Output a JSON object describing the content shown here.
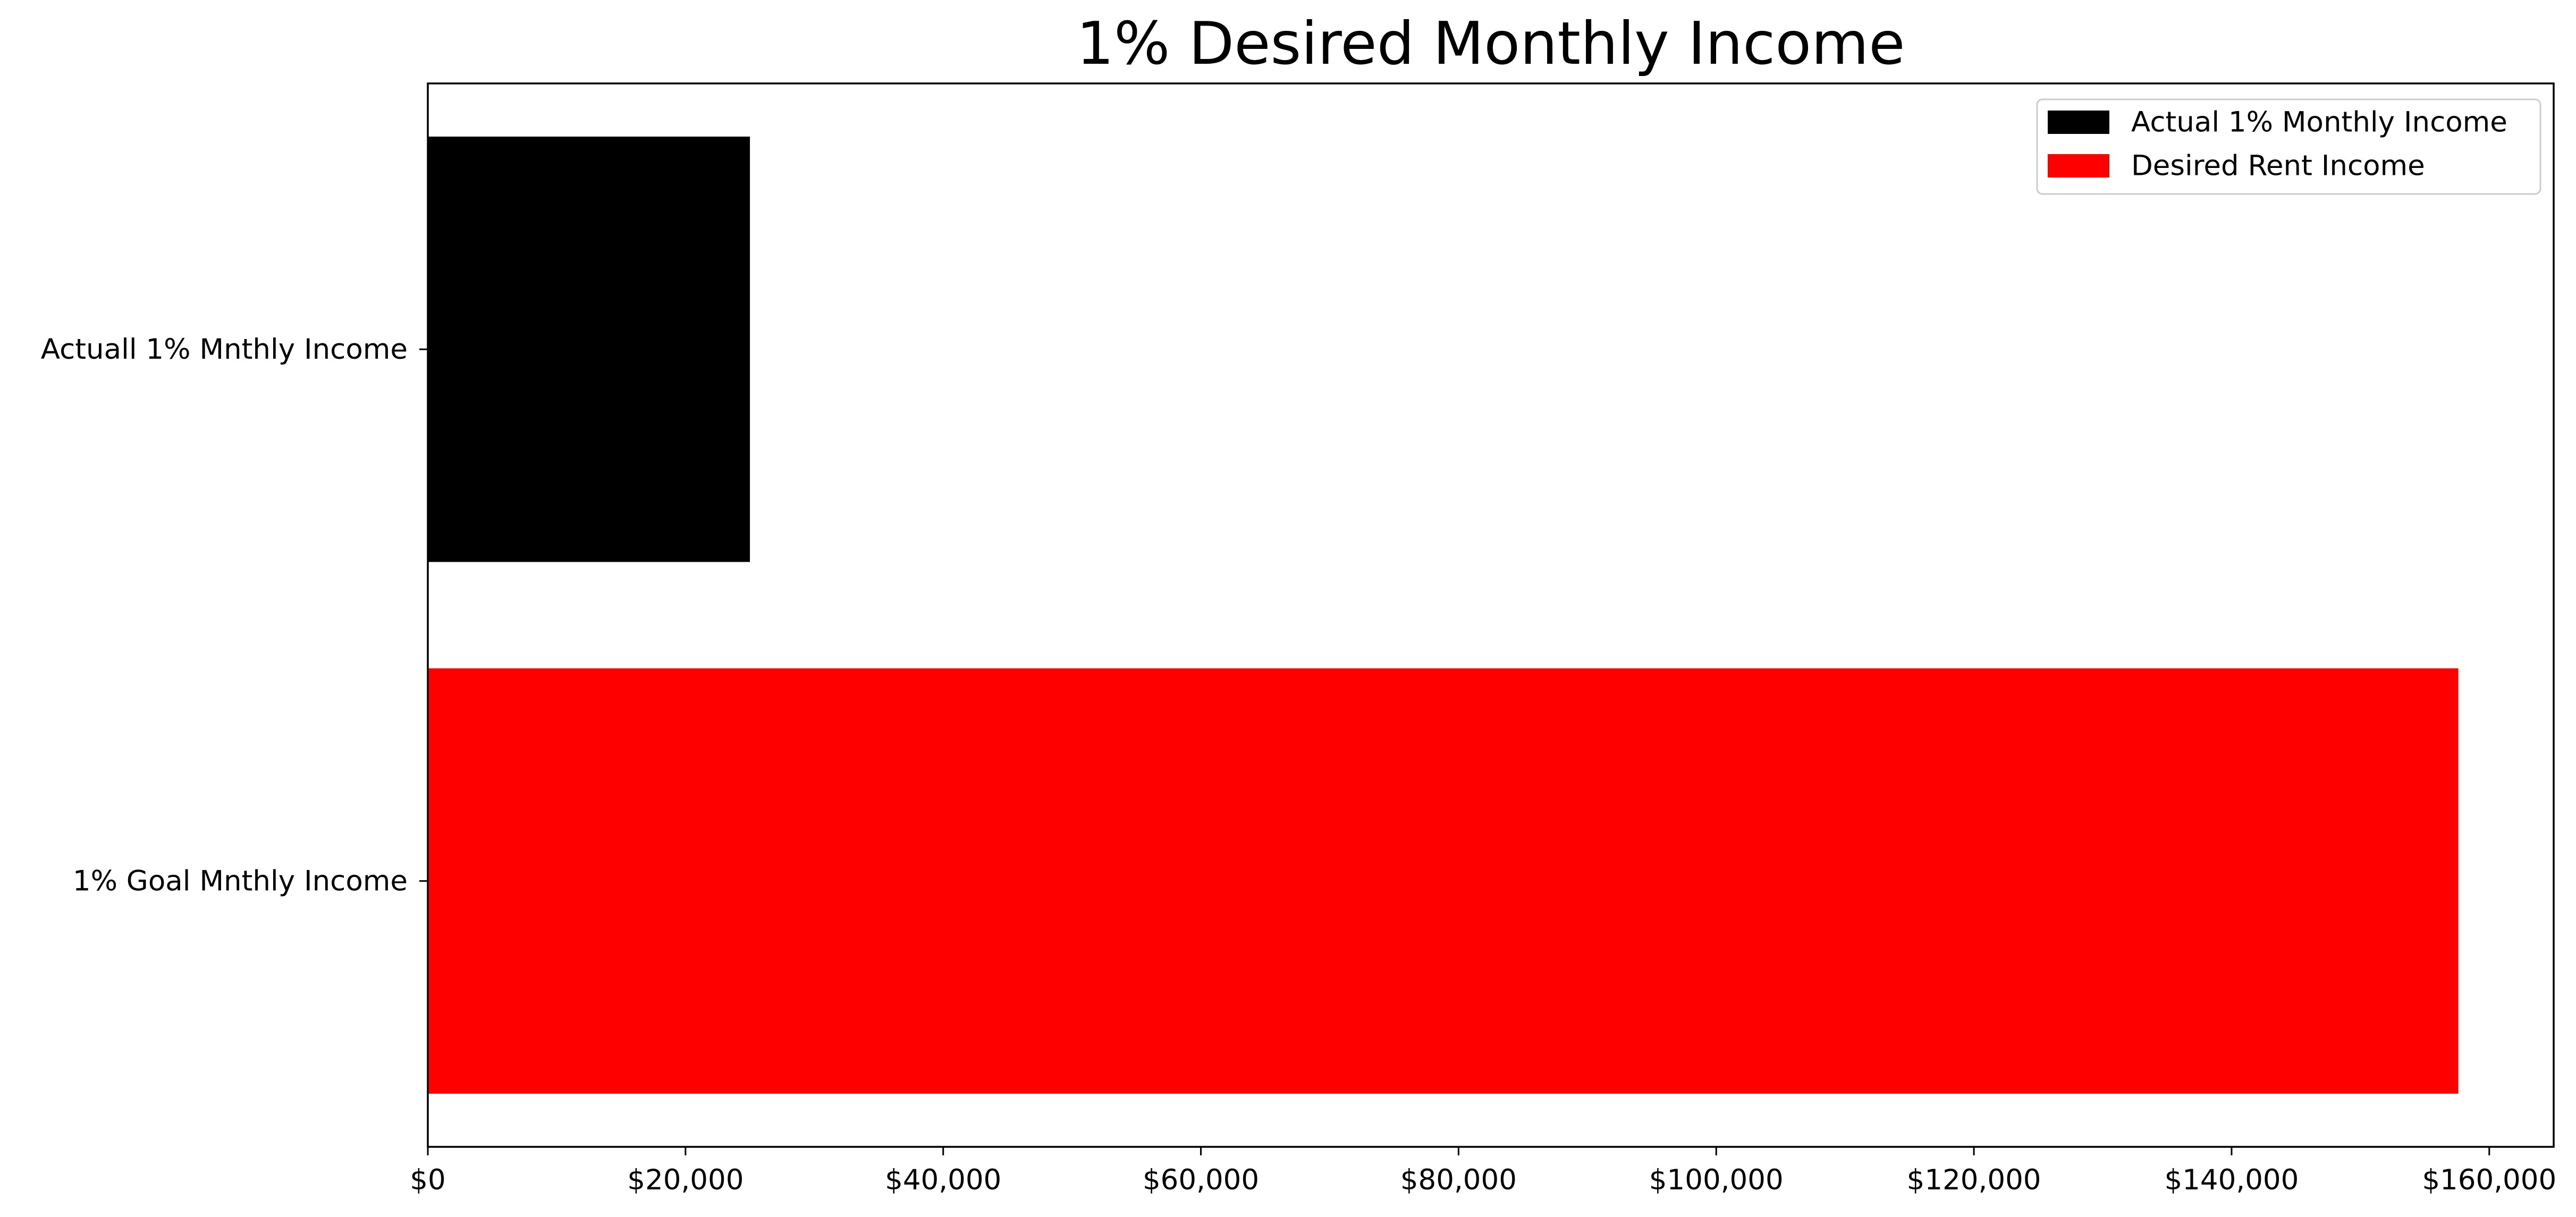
{
  "chart_data": {
    "type": "bar",
    "orientation": "horizontal",
    "title": "1% Desired Monthly Income",
    "xlabel": "",
    "ylabel": "",
    "categories": [
      "Actuall 1% Mnthly Income",
      "1% Goal Mnthly Income"
    ],
    "values": [
      25000,
      157600
    ],
    "bar_colors": [
      "#000000",
      "#ff0000"
    ],
    "xlim": [
      0,
      165000
    ],
    "x_ticks": [
      0,
      20000,
      40000,
      60000,
      80000,
      100000,
      120000,
      140000,
      160000
    ],
    "x_tick_labels": [
      "$0",
      "$20,000",
      "$40,000",
      "$60,000",
      "$80,000",
      "$100,000",
      "$120,000",
      "$140,000",
      "$160,000"
    ],
    "grid": false,
    "legend": {
      "placement": "upper-right",
      "entries": [
        {
          "label": "Actual 1% Monthly Income",
          "color": "#000000"
        },
        {
          "label": "Desired Rent Income",
          "color": "#ff0000"
        }
      ]
    }
  }
}
